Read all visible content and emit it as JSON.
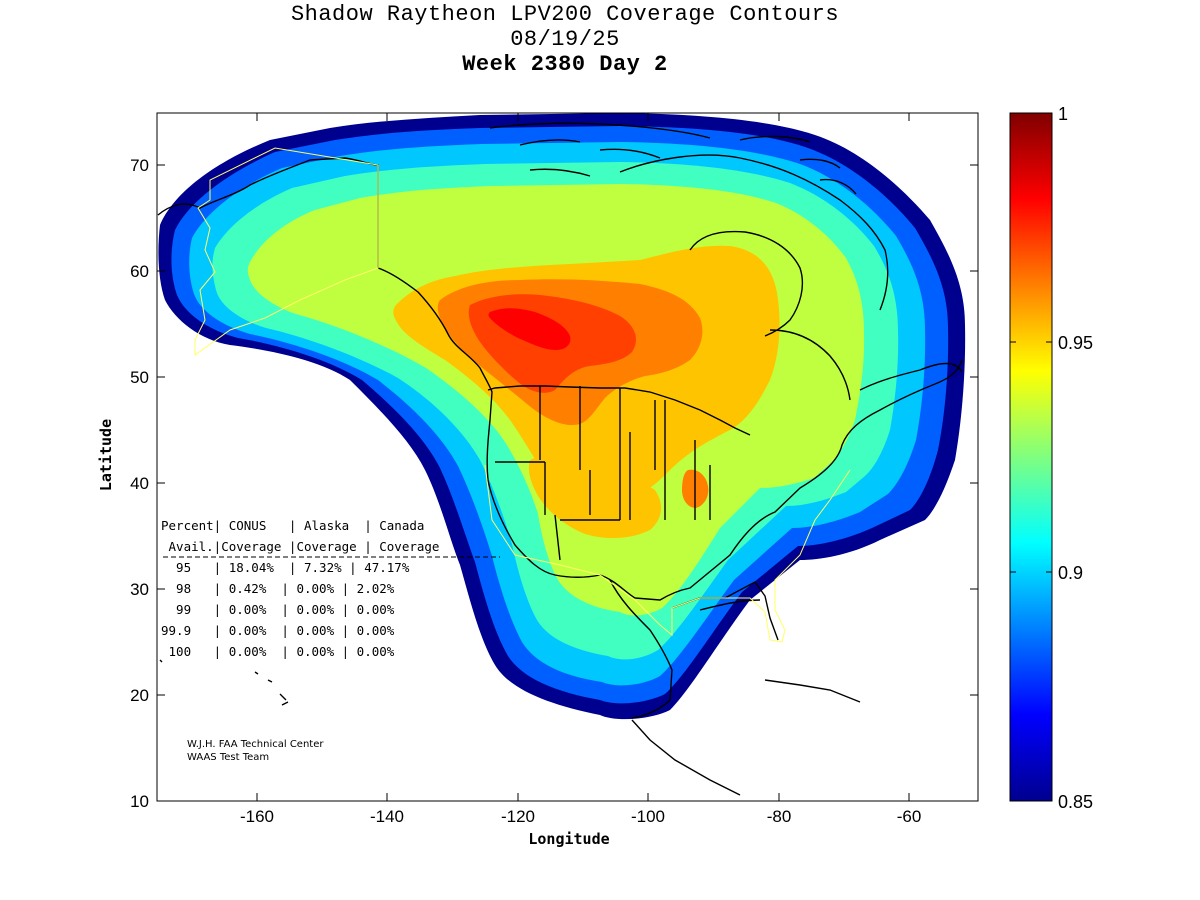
{
  "title": {
    "line1": "Shadow Raytheon LPV200 Coverage Contours",
    "line2": "08/19/25",
    "line3": "Week 2380 Day 2"
  },
  "axes": {
    "xlabel": "Longitude",
    "ylabel": "Latitude",
    "x_ticks": [
      "-160",
      "-140",
      "-120",
      "-100",
      "-80",
      "-60"
    ],
    "y_ticks": [
      "10",
      "20",
      "30",
      "40",
      "50",
      "60",
      "70"
    ]
  },
  "colorbar": {
    "ticks": [
      "1",
      "0.95",
      "0.9",
      "0.85"
    ],
    "range": [
      0.85,
      1.0
    ]
  },
  "stats_table": {
    "header1": "Percent| CONUS   | Alaska  | Canada",
    "header2": " Avail.|Coverage |Coverage | Coverage",
    "rows": [
      "  95   | 18.04%  | 7.32% | 47.17%",
      "  98   | 0.42%  | 0.00% | 2.02%",
      "  99   | 0.00%  | 0.00% | 0.00%",
      "99.9   | 0.00%  | 0.00% | 0.00%",
      " 100   | 0.00%  | 0.00% | 0.00%"
    ]
  },
  "credit": {
    "line1": "W.J.H. FAA Technical Center",
    "line2": "WAAS Test Team"
  },
  "colors": {
    "c85": "#00008f",
    "c87": "#0040ff",
    "c89": "#00bfff",
    "c91": "#40ffbf",
    "c93": "#bfff40",
    "c95": "#ffc000",
    "c97": "#ff4000"
  }
}
